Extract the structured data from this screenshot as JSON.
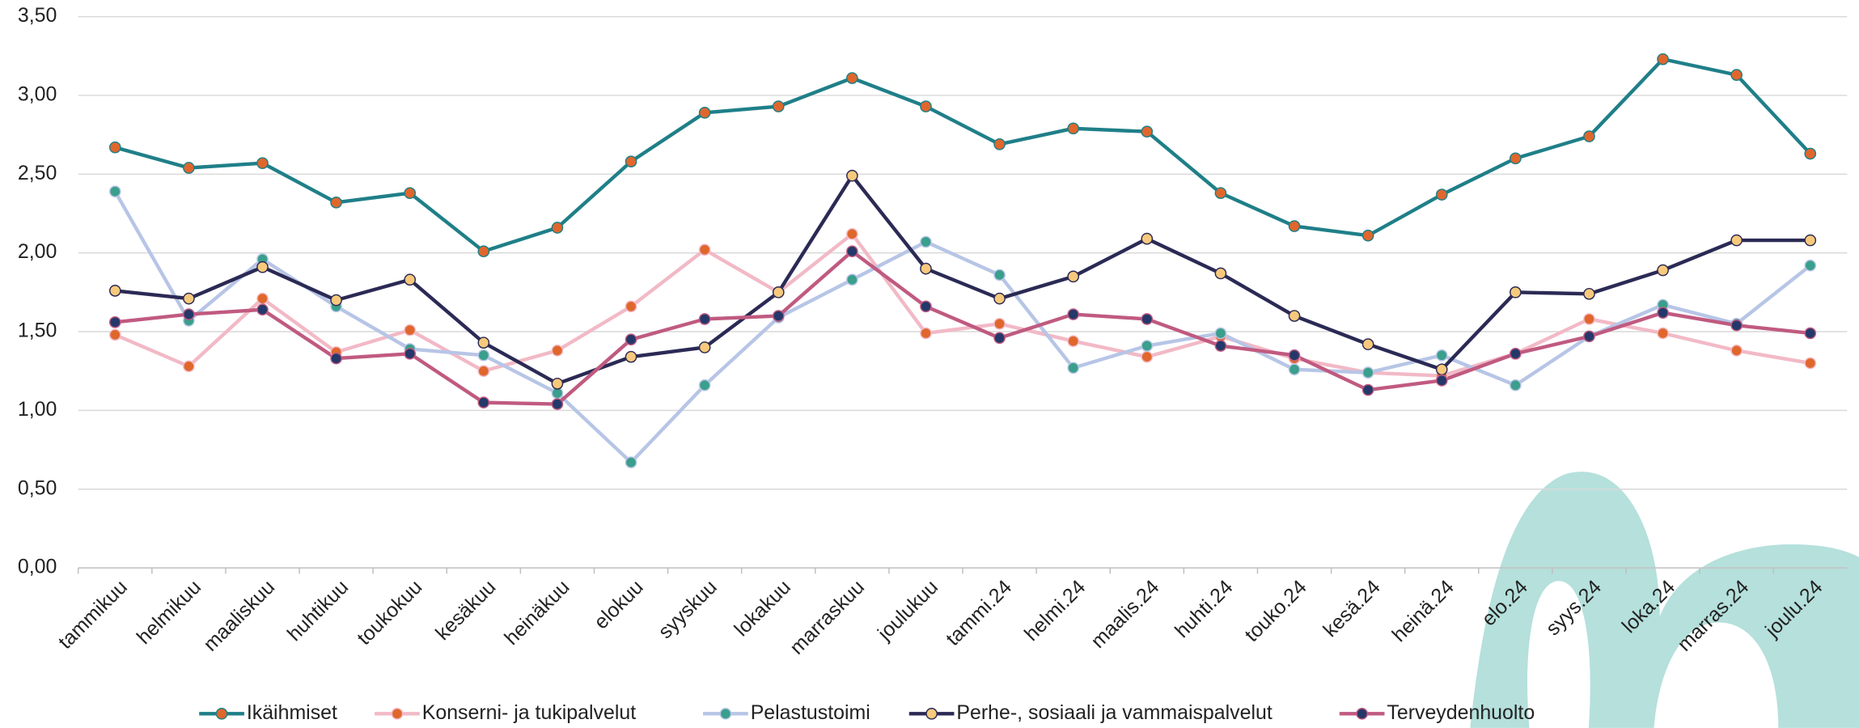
{
  "chart_data": {
    "type": "line",
    "categories": [
      "tammikuu",
      "helmikuu",
      "maaliskuu",
      "huhtikuu",
      "toukokuu",
      "kesäkuu",
      "heinäkuu",
      "elokuu",
      "syyskuu",
      "lokakuu",
      "marraskuu",
      "joulukuu",
      "tammi.24",
      "helmi.24",
      "maalis.24",
      "huhti.24",
      "touko.24",
      "kesä.24",
      "heinä.24",
      "elo.24",
      "syys.24",
      "loka.24",
      "marras.24",
      "joulu.24"
    ],
    "series": [
      {
        "name": "Ikäihmiset",
        "color": "#1f7f88",
        "marker_color": "#e0672c",
        "values": [
          2.67,
          2.54,
          2.57,
          2.32,
          2.38,
          2.01,
          2.16,
          2.58,
          2.89,
          2.93,
          3.11,
          2.93,
          2.69,
          2.79,
          2.77,
          2.38,
          2.17,
          2.11,
          2.37,
          2.6,
          2.74,
          3.23,
          3.13,
          2.63
        ]
      },
      {
        "name": "Konserni- ja tukipalvelut",
        "color": "#f2b9c6",
        "marker_color": "#e0672c",
        "values": [
          1.48,
          1.28,
          1.71,
          1.37,
          1.51,
          1.25,
          1.38,
          1.66,
          2.02,
          1.75,
          2.12,
          1.49,
          1.55,
          1.44,
          1.34,
          1.47,
          1.33,
          1.24,
          1.22,
          1.36,
          1.58,
          1.49,
          1.38,
          1.3
        ]
      },
      {
        "name": "Pelastustoimi",
        "color": "#b7c5e6",
        "marker_color": "#3a9f8c",
        "values": [
          2.39,
          1.57,
          1.96,
          1.66,
          1.39,
          1.35,
          1.11,
          0.67,
          1.16,
          1.59,
          1.83,
          2.07,
          1.86,
          1.27,
          1.41,
          1.49,
          1.26,
          1.24,
          1.35,
          1.16,
          1.47,
          1.67,
          1.55,
          1.92
        ]
      },
      {
        "name": "Perhe-, sosiaali ja vammaispalvelut",
        "color": "#2b2a55",
        "marker_color": "#f7c97c",
        "values": [
          1.76,
          1.71,
          1.91,
          1.7,
          1.83,
          1.43,
          1.17,
          1.34,
          1.4,
          1.75,
          2.49,
          1.9,
          1.71,
          1.85,
          2.09,
          1.87,
          1.6,
          1.42,
          1.26,
          1.75,
          1.74,
          1.89,
          2.08,
          2.08
        ]
      },
      {
        "name": "Terveydenhuolto",
        "color": "#c05a80",
        "marker_color": "#24386a",
        "values": [
          1.56,
          1.61,
          1.64,
          1.33,
          1.36,
          1.05,
          1.04,
          1.45,
          1.58,
          1.6,
          2.01,
          1.66,
          1.46,
          1.61,
          1.58,
          1.41,
          1.35,
          1.13,
          1.19,
          1.36,
          1.47,
          1.62,
          1.54,
          1.49
        ]
      }
    ],
    "ylim": [
      0,
      3.5
    ],
    "yticks": [
      {
        "value": 0,
        "label": "0,00"
      },
      {
        "value": 0.5,
        "label": "0,50"
      },
      {
        "value": 1,
        "label": "1,00"
      },
      {
        "value": 1.5,
        "label": "1,50"
      },
      {
        "value": 2,
        "label": "2,00"
      },
      {
        "value": 2.5,
        "label": "2,50"
      },
      {
        "value": 3,
        "label": "3,00"
      },
      {
        "value": 3.5,
        "label": "3,50"
      }
    ],
    "grid": true,
    "legend": "bottom"
  }
}
